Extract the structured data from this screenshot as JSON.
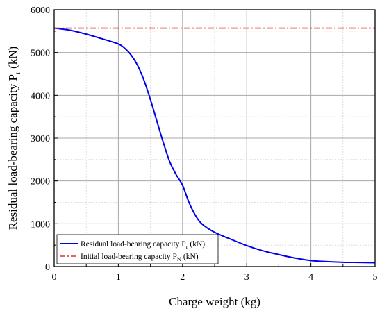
{
  "chart_data": {
    "type": "line",
    "title": "",
    "xlabel": "Charge weight (kg)",
    "ylabel": {
      "main": "Residual load-bearing capacity P",
      "sub": "r",
      "unit": " (kN)"
    },
    "xlim": [
      0,
      5
    ],
    "ylim": [
      0,
      6000
    ],
    "x_ticks": [
      0,
      1,
      2,
      3,
      4,
      5
    ],
    "y_ticks": [
      0,
      1000,
      2000,
      3000,
      4000,
      5000,
      6000
    ],
    "grid": true,
    "legend_position": "bottom-left",
    "series": [
      {
        "name": {
          "main": "Residual load-bearing capacity P",
          "sub": "r",
          "unit": " (kN)"
        },
        "color": "#0000ee",
        "line_style": "solid",
        "x": [
          0,
          0.25,
          0.5,
          0.75,
          1.0,
          1.1,
          1.2,
          1.3,
          1.4,
          1.5,
          1.6,
          1.7,
          1.8,
          1.9,
          2.0,
          2.1,
          2.2,
          2.3,
          2.5,
          2.75,
          3.0,
          3.25,
          3.5,
          3.75,
          4.0,
          4.25,
          4.5,
          4.75,
          5.0
        ],
        "y": [
          5570,
          5520,
          5430,
          5320,
          5200,
          5100,
          4940,
          4700,
          4350,
          3900,
          3400,
          2900,
          2450,
          2150,
          1900,
          1500,
          1200,
          1000,
          800,
          640,
          490,
          370,
          280,
          200,
          140,
          115,
          100,
          95,
          90
        ]
      },
      {
        "name": {
          "main": "Initial load-bearing capacity P",
          "sub": "N",
          "unit": " (kN)"
        },
        "color": "#e03030",
        "line_style": "dash-dot",
        "x": [
          0,
          5
        ],
        "y": [
          5570,
          5570
        ]
      }
    ]
  }
}
